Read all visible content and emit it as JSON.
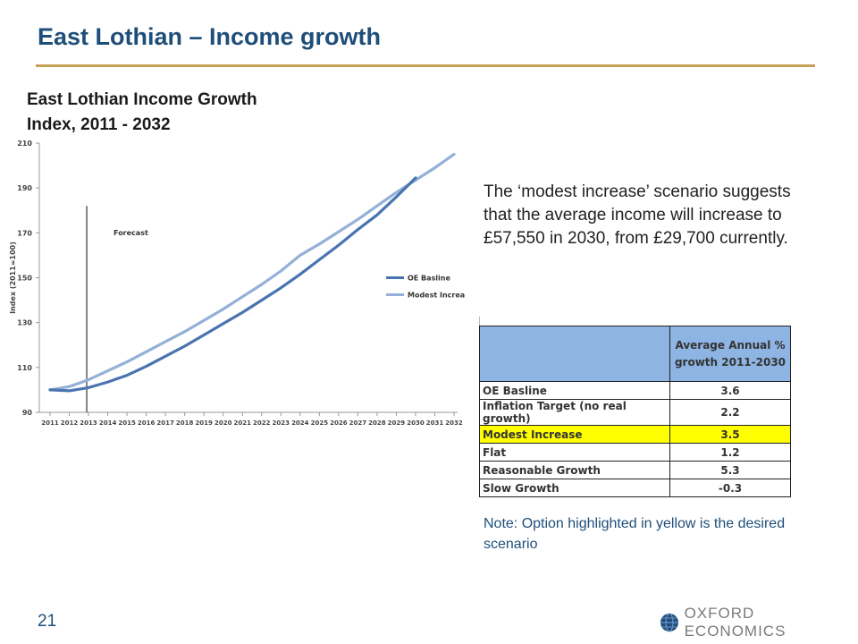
{
  "slide": {
    "title": "East Lothian – Income growth",
    "page_number": "21",
    "logo_text": "OXFORD ECONOMICS",
    "colors": {
      "title": "#1f4e79",
      "rule": "#c5a257",
      "highlight": "#ffff00",
      "header_fill": "#8db4e2"
    }
  },
  "chart_data": {
    "type": "line",
    "title": "East Lothian Income Growth Index, 2011 - 2032",
    "title_lines": [
      "East Lothian Income Growth",
      "Index, 2011 - 2032"
    ],
    "ylabel": "Index (2011=100)",
    "xlabel": "",
    "ylim": [
      90,
      210
    ],
    "yticks": [
      90,
      110,
      130,
      150,
      170,
      190,
      210
    ],
    "x": [
      "2011",
      "2012",
      "2013",
      "2014",
      "2015",
      "2016",
      "2017",
      "2018",
      "2019",
      "2020",
      "2021",
      "2022",
      "2023",
      "2024",
      "2025",
      "2026",
      "2027",
      "2028",
      "2029",
      "2030",
      "2031",
      "2032"
    ],
    "series": [
      {
        "name": "OE Basline",
        "color": "#4a74b0",
        "values": [
          100,
          99.6,
          101,
          103.5,
          106.5,
          110.5,
          115,
          119.5,
          124.5,
          129.5,
          134.5,
          140,
          145.5,
          151.5,
          158,
          164.5,
          171.5,
          178,
          186,
          194.5,
          null,
          null
        ]
      },
      {
        "name": "Modest Increase",
        "color": "#94b0d8",
        "values": [
          100,
          101.5,
          104.5,
          108.5,
          112.5,
          117,
          121.5,
          126,
          131,
          136,
          141.5,
          147,
          153,
          160,
          165,
          170.5,
          176,
          182,
          188,
          193.5,
          199,
          205
        ]
      }
    ],
    "annotations": [
      {
        "text": "Forecast",
        "x": "2013"
      }
    ],
    "legend_position": "right",
    "grid": false
  },
  "description": "The ‘modest increase’ scenario suggests that the average income will increase to £57,550 in 2030, from £29,700 currently.",
  "growth_table": {
    "header": "Average Annual % growth 2011-2030",
    "rows": [
      {
        "name": "OE Basline",
        "value": "3.6",
        "highlight": false
      },
      {
        "name": "Inflation Target (no real growth)",
        "value": "2.2",
        "highlight": false
      },
      {
        "name": "Modest Increase",
        "value": "3.5",
        "highlight": true
      },
      {
        "name": "Flat",
        "value": "1.2",
        "highlight": false
      },
      {
        "name": "Reasonable Growth",
        "value": "5.3",
        "highlight": false
      },
      {
        "name": "Slow Growth",
        "value": "-0.3",
        "highlight": false
      }
    ]
  },
  "note": "Note: Option highlighted in yellow is the desired scenario"
}
